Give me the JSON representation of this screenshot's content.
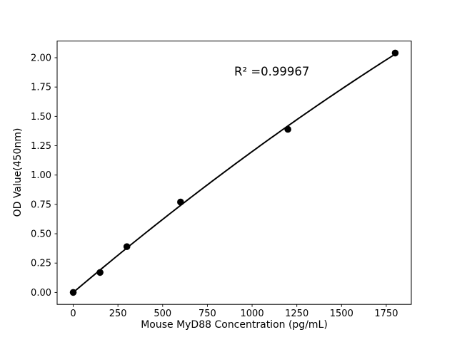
{
  "figure": {
    "background_color": "#ffffff",
    "foreground_color": "#000000"
  },
  "chart_data": {
    "type": "scatter",
    "title": "",
    "xlabel": "Mouse MyD88 Concentration (pg/mL)",
    "ylabel": "OD Value(450nm)",
    "x": [
      0,
      150,
      300,
      600,
      1200,
      1800
    ],
    "y": [
      0.0,
      0.17,
      0.39,
      0.77,
      1.39,
      2.04
    ],
    "fit_curve": "quadratic",
    "annotation": {
      "text": "R² =0.99967",
      "x": 900,
      "y": 1.88
    },
    "r_squared": 0.99967,
    "xticks": [
      0,
      250,
      500,
      750,
      1000,
      1250,
      1500,
      1750
    ],
    "xtick_labels": [
      "0",
      "250",
      "500",
      "750",
      "1000",
      "1250",
      "1500",
      "1750"
    ],
    "yticks": [
      0.0,
      0.25,
      0.5,
      0.75,
      1.0,
      1.25,
      1.5,
      1.75,
      2.0
    ],
    "ytick_labels": [
      "0.00",
      "0.25",
      "0.50",
      "0.75",
      "1.00",
      "1.25",
      "1.50",
      "1.75",
      "2.00"
    ],
    "xlim": [
      -90,
      1890
    ],
    "ylim": [
      -0.102,
      2.142
    ],
    "grid": false,
    "legend": null,
    "marker_color": "#000000",
    "line_color": "#000000"
  }
}
